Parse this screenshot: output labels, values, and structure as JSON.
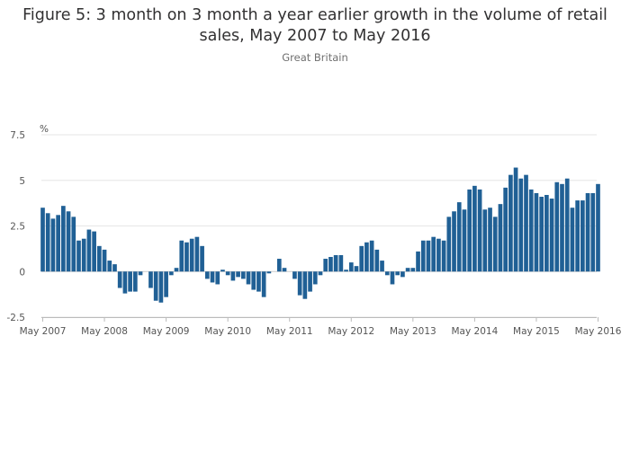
{
  "title_line1": "Figure 5: 3 month on 3 month a year earlier growth in the volume of retail",
  "title_line2": "sales, May 2007 to May 2016",
  "subtitle": "Great Britain",
  "chart_data": {
    "type": "bar",
    "title": "Figure 5: 3 month on 3 month a year earlier growth in the volume of retail sales, May 2007 to May 2016",
    "subtitle": "Great Britain",
    "ylabel": "%",
    "xlabel": "",
    "ylim": [
      -2.5,
      7.5
    ],
    "yticks": [
      -2.5,
      0,
      2.5,
      5,
      7.5
    ],
    "ytick_labels": [
      "-2.5",
      "0",
      "2.5",
      "5",
      "7.5"
    ],
    "xtick_labels": [
      "May 2007",
      "May 2008",
      "May 2009",
      "May 2010",
      "May 2011",
      "May 2012",
      "May 2013",
      "May 2014",
      "May 2015",
      "May 2016"
    ],
    "grid": true,
    "bar_color": "#206095",
    "start": "May 2007",
    "end": "May 2016",
    "values": [
      3.5,
      3.2,
      2.9,
      3.1,
      3.6,
      3.3,
      3.0,
      1.7,
      1.8,
      2.3,
      2.2,
      1.4,
      1.2,
      0.6,
      0.4,
      -0.9,
      -1.2,
      -1.1,
      -1.1,
      -0.2,
      0.0,
      -0.9,
      -1.6,
      -1.7,
      -1.4,
      -0.2,
      0.2,
      1.7,
      1.6,
      1.8,
      1.9,
      1.4,
      -0.4,
      -0.6,
      -0.7,
      0.1,
      -0.2,
      -0.5,
      -0.3,
      -0.4,
      -0.7,
      -1.0,
      -1.1,
      -1.4,
      -0.1,
      0.0,
      0.7,
      0.2,
      0.0,
      -0.4,
      -1.3,
      -1.5,
      -1.1,
      -0.7,
      -0.2,
      0.7,
      0.8,
      0.9,
      0.9,
      0.1,
      0.5,
      0.3,
      1.4,
      1.6,
      1.7,
      1.2,
      0.6,
      -0.2,
      -0.7,
      -0.2,
      -0.3,
      0.2,
      0.2,
      1.1,
      1.7,
      1.7,
      1.9,
      1.8,
      1.7,
      3.0,
      3.3,
      3.8,
      3.4,
      4.5,
      4.7,
      4.5,
      3.4,
      3.5,
      3.0,
      3.7,
      4.6,
      5.3,
      5.7,
      5.1,
      5.3,
      4.5,
      4.3,
      4.1,
      4.2,
      4.0,
      4.9,
      4.8,
      5.1,
      3.5,
      3.9,
      3.9,
      4.3,
      4.3,
      4.8
    ]
  }
}
